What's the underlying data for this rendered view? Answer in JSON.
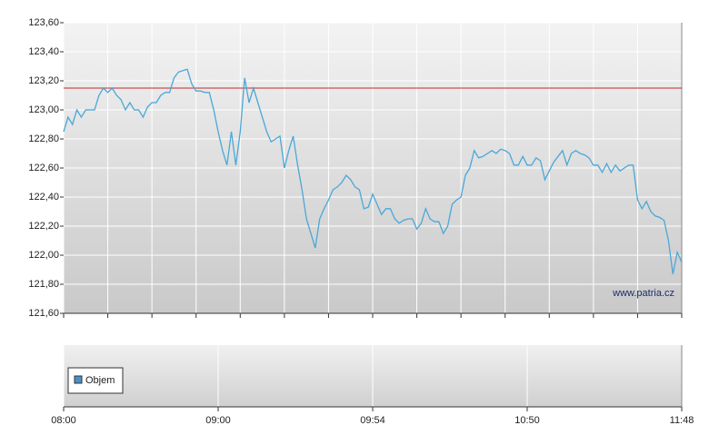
{
  "chart_data": {
    "type": "line",
    "x": [
      0,
      1,
      2,
      3,
      4,
      5,
      6,
      7,
      8,
      9,
      10,
      11,
      12,
      13,
      14,
      15,
      16,
      17,
      18,
      19,
      20,
      21,
      22,
      23,
      24,
      25,
      26,
      27,
      28,
      29,
      30,
      31,
      32,
      33,
      34,
      35,
      36,
      37,
      38,
      39,
      40,
      41,
      42,
      43,
      44,
      45,
      46,
      47,
      48,
      49,
      50,
      51,
      52,
      53,
      54,
      55,
      56,
      57,
      58,
      59,
      60,
      61,
      62,
      63,
      64,
      65,
      66,
      67,
      68,
      69,
      70,
      71,
      72,
      73,
      74,
      75,
      76,
      77,
      78,
      79,
      80,
      81,
      82,
      83,
      84,
      85,
      86,
      87,
      88,
      89,
      90,
      91,
      92,
      93,
      94,
      95,
      96,
      97,
      98,
      99,
      100,
      101,
      102,
      103,
      104,
      105,
      106,
      107,
      108,
      109,
      110,
      111,
      112,
      113,
      114,
      115,
      116,
      117,
      118,
      119,
      120,
      121,
      122,
      123,
      124,
      125,
      126,
      127,
      128,
      129,
      130,
      131,
      132,
      133,
      134,
      135,
      136,
      137,
      138,
      139,
      140
    ],
    "series": [
      {
        "color": "#4aa8d8",
        "values": [
          122.85,
          122.95,
          122.9,
          123.0,
          122.95,
          123.0,
          123.0,
          123.0,
          123.1,
          123.15,
          123.12,
          123.15,
          123.1,
          123.07,
          123.0,
          123.05,
          123.0,
          123.0,
          122.95,
          123.02,
          123.05,
          123.05,
          123.1,
          123.12,
          123.12,
          123.22,
          123.26,
          123.27,
          123.28,
          123.18,
          123.13,
          123.13,
          123.12,
          123.12,
          123.0,
          122.85,
          122.72,
          122.62,
          122.85,
          122.62,
          122.85,
          123.22,
          123.05,
          123.15,
          123.05,
          122.95,
          122.85,
          122.78,
          122.8,
          122.82,
          122.6,
          122.72,
          122.82,
          122.62,
          122.45,
          122.25,
          122.15,
          122.05,
          122.25,
          122.32,
          122.38,
          122.45,
          122.47,
          122.5,
          122.55,
          122.52,
          122.47,
          122.45,
          122.32,
          122.33,
          122.42,
          122.35,
          122.28,
          122.32,
          122.32,
          122.25,
          122.22,
          122.24,
          122.25,
          122.25,
          122.18,
          122.22,
          122.32,
          122.25,
          122.23,
          122.23,
          122.15,
          122.2,
          122.35,
          122.38,
          122.4,
          122.55,
          122.6,
          122.72,
          122.67,
          122.68,
          122.7,
          122.72,
          122.7,
          122.73,
          122.72,
          122.7,
          122.62,
          122.62,
          122.68,
          122.62,
          122.62,
          122.67,
          122.65,
          122.52,
          122.58,
          122.64,
          122.68,
          122.72,
          122.62,
          122.7,
          122.72,
          122.7,
          122.69,
          122.67,
          122.62,
          122.62,
          122.57,
          122.63,
          122.57,
          122.62,
          122.58,
          122.6,
          122.62,
          122.62,
          122.38,
          122.32,
          122.37,
          122.3,
          122.27,
          122.26,
          122.24,
          122.1,
          121.87,
          122.02,
          121.95
        ]
      }
    ],
    "xlim": [
      0,
      140
    ],
    "xticks": [
      {
        "value": 0,
        "label": "08:00"
      },
      {
        "value": 35,
        "label": "09:00"
      },
      {
        "value": 70,
        "label": "09:54"
      },
      {
        "value": 105,
        "label": "10:50"
      },
      {
        "value": 140,
        "label": "11:48"
      }
    ],
    "xminorticks": [
      0,
      10,
      20,
      30,
      40,
      50,
      60,
      70,
      80,
      90,
      100,
      110,
      120,
      130,
      140
    ],
    "ylim": [
      121.6,
      123.6
    ],
    "yticks": [
      {
        "value": 121.6,
        "label": "121,60"
      },
      {
        "value": 121.8,
        "label": "121,80"
      },
      {
        "value": 122.0,
        "label": "122,00"
      },
      {
        "value": 122.2,
        "label": "122,20"
      },
      {
        "value": 122.4,
        "label": "122,40"
      },
      {
        "value": 122.6,
        "label": "122,60"
      },
      {
        "value": 122.8,
        "label": "122,80"
      },
      {
        "value": 123.0,
        "label": "123,00"
      },
      {
        "value": 123.2,
        "label": "123,20"
      },
      {
        "value": 123.4,
        "label": "123,40"
      },
      {
        "value": 123.6,
        "label": "123,60"
      }
    ],
    "reference_line": {
      "value": 123.15,
      "color": "#c0282d"
    },
    "grid": true,
    "watermark": "www.patria.cz",
    "volume_legend": {
      "label": "Objem",
      "color": "#4a90c8"
    }
  }
}
